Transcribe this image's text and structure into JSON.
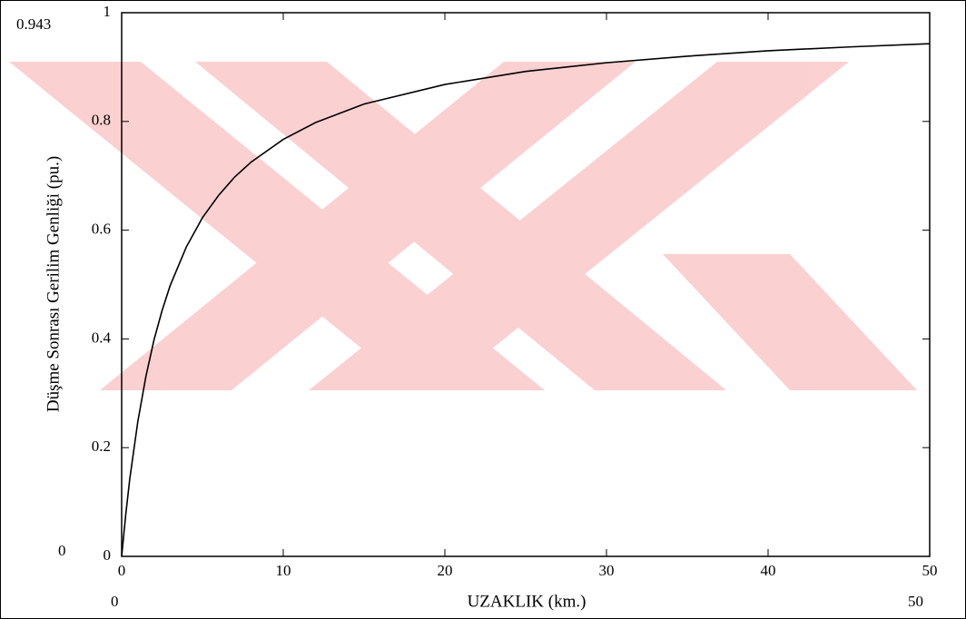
{
  "chart_data": {
    "type": "line",
    "xlabel": "UZAKLIK (km.)",
    "ylabel": "Düşme Sonrası Gerilim Genliği (pu.)",
    "xlim": [
      0,
      50
    ],
    "ylim": [
      0,
      1
    ],
    "xticks": [
      0,
      10,
      20,
      30,
      40,
      50
    ],
    "yticks": [
      0,
      0.2,
      0.4,
      0.6,
      0.8,
      1
    ],
    "y_upper_marker": "0.943",
    "y_lower_marker": "0",
    "x_lower_marker": "0",
    "x_upper_marker": "50",
    "x": [
      0,
      0.25,
      0.5,
      1,
      1.5,
      2,
      2.5,
      3,
      4,
      5,
      6,
      7,
      8,
      10,
      12,
      15,
      20,
      25,
      30,
      35,
      40,
      45,
      50
    ],
    "series": [
      {
        "color": "#000000",
        "values": [
          0,
          0.076,
          0.142,
          0.248,
          0.331,
          0.398,
          0.452,
          0.498,
          0.569,
          0.623,
          0.664,
          0.698,
          0.725,
          0.767,
          0.798,
          0.832,
          0.868,
          0.892,
          0.908,
          0.92,
          0.93,
          0.937,
          0.943
        ]
      }
    ]
  }
}
